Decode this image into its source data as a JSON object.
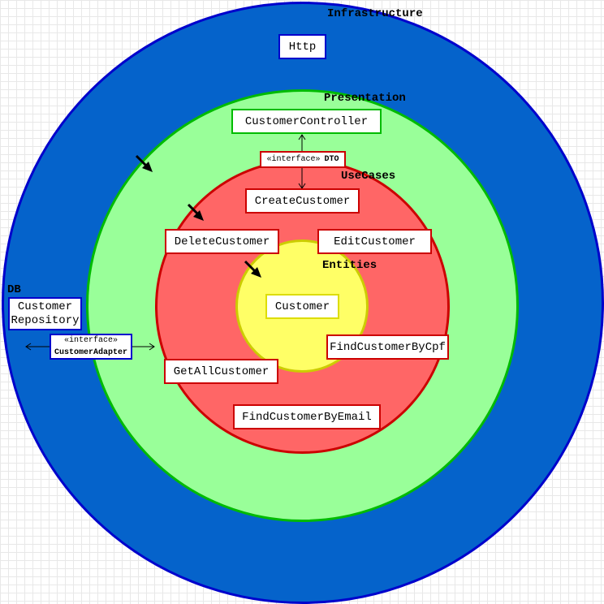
{
  "layers": {
    "infrastructure": {
      "label": "Infrastructure",
      "color": "#0563cb",
      "border": "#0000cc"
    },
    "presentation": {
      "label": "Presentation",
      "color": "#99ff99",
      "border": "#00bb00"
    },
    "usecases": {
      "label": "UseCases",
      "color": "#ff6666",
      "border": "#cc0000"
    },
    "entities": {
      "label": "Entities",
      "color": "#ffff66",
      "border": "#cccc00"
    }
  },
  "db_label": "DB",
  "boxes": {
    "http": "Http",
    "customer_controller": "CustomerController",
    "dto_stereotype": "«interface»",
    "dto_name": "DTO",
    "create_customer": "CreateCustomer",
    "delete_customer": "DeleteCustomer",
    "edit_customer": "EditCustomer",
    "customer": "Customer",
    "find_customer_by_cpf": "FindCustomerByCpf",
    "get_all_customer": "GetAllCustomer",
    "find_customer_by_email": "FindCustomerByEmail",
    "customer_repository_line1": "Customer",
    "customer_repository_line2": "Repository",
    "adapter_stereotype": "«interface»",
    "adapter_name": "CustomerAdapter"
  },
  "icons": [
    "arrow-icon"
  ]
}
